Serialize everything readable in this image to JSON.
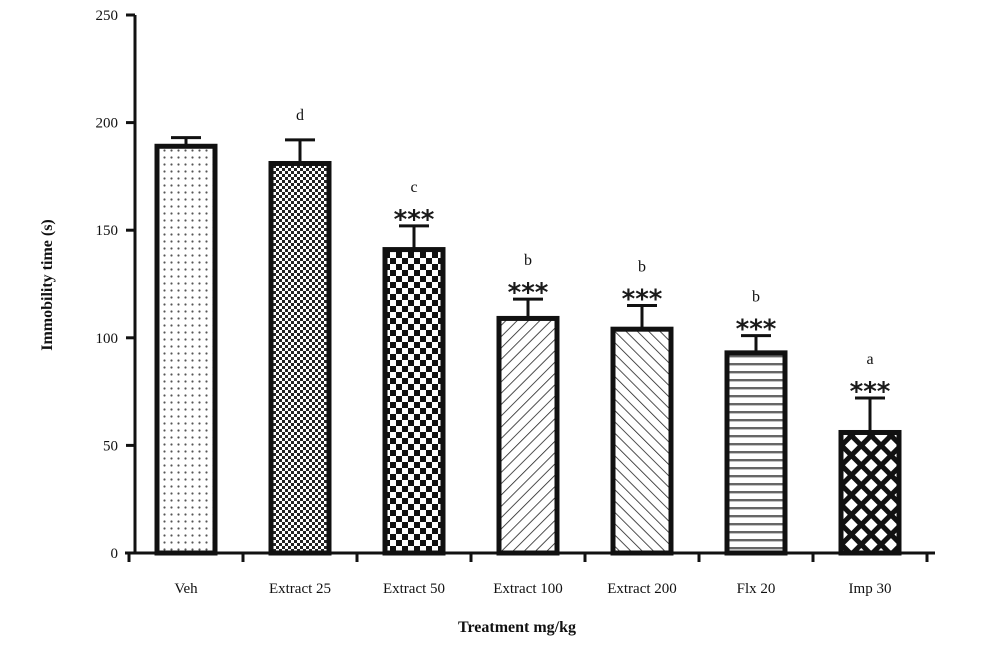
{
  "chart_data": {
    "type": "bar",
    "title": "",
    "xlabel": "Treatment mg/kg",
    "ylabel": "Immobility time (s)",
    "ylim": [
      0,
      250
    ],
    "yticks": [
      0,
      50,
      100,
      150,
      200,
      250
    ],
    "categories": [
      "Veh",
      "Extract 25",
      "Extract 50",
      "Extract 100",
      "Extract 200",
      "Flx 20",
      "Imp 30"
    ],
    "values": [
      189,
      181,
      141,
      109,
      104,
      93,
      56
    ],
    "error_upper": [
      193,
      192,
      152,
      118,
      115,
      101,
      72
    ],
    "significance_stars": [
      "",
      "",
      "***",
      "***",
      "***",
      "***",
      "***"
    ],
    "group_letters": [
      "",
      "d",
      "c",
      "b",
      "b",
      "b",
      "a"
    ],
    "fill_patterns": [
      "fine-dots",
      "fine-checker",
      "coarse-checker",
      "diagonal-right",
      "diagonal-left",
      "horizontal-lines",
      "crosshatch"
    ],
    "colors": {
      "bar_stroke": "#111111",
      "axis": "#111111",
      "pattern": "#222222",
      "background": "#ffffff"
    }
  }
}
